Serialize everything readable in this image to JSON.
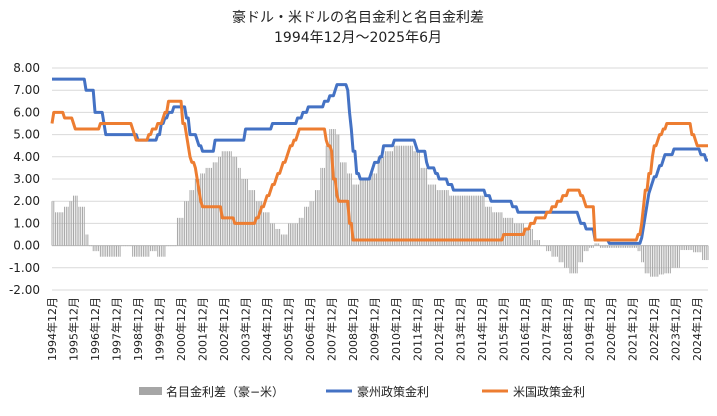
{
  "chart_data": {
    "type": "line",
    "title": "豪ドル・米ドルの名目金利と名目金利差",
    "subtitle": "1994年12月～2025年6月",
    "x_start": "1994-12",
    "x_end": "2025-06",
    "xlabel": "",
    "ylabel": "",
    "ylim": [
      -2.0,
      8.0
    ],
    "yticks": [
      "8.00",
      "7.00",
      "6.00",
      "5.00",
      "4.00",
      "3.00",
      "2.00",
      "1.00",
      "0.00",
      "-1.00",
      "-2.00"
    ],
    "xticks": [
      "1994年12月",
      "1995年12月",
      "1996年12月",
      "1997年12月",
      "1998年12月",
      "1999年12月",
      "2000年12月",
      "2001年12月",
      "2002年12月",
      "2003年12月",
      "2004年12月",
      "2005年12月",
      "2006年12月",
      "2007年12月",
      "2008年12月",
      "2009年12月",
      "2010年12月",
      "2011年12月",
      "2012年12月",
      "2013年12月",
      "2014年12月",
      "2015年12月",
      "2016年12月",
      "2017年12月",
      "2018年12月",
      "2019年12月",
      "2020年12月",
      "2021年12月",
      "2022年12月",
      "2023年12月",
      "2024年12月"
    ],
    "grid": true,
    "legend_position": "bottom",
    "series": [
      {
        "name": "名目金利差（豪−米）",
        "kind": "bar",
        "color": "#a6a6a6",
        "points": [
          [
            "1994-12",
            2.0
          ],
          [
            "1995-02",
            1.5
          ],
          [
            "1995-07",
            1.75
          ],
          [
            "1995-10",
            2.0
          ],
          [
            "1995-12",
            2.25
          ],
          [
            "1996-03",
            1.75
          ],
          [
            "1996-07",
            0.5
          ],
          [
            "1996-09",
            0.0
          ],
          [
            "1996-11",
            -0.25
          ],
          [
            "1997-03",
            -0.5
          ],
          [
            "1998-03",
            0.0
          ],
          [
            "1998-09",
            -0.5
          ],
          [
            "1999-07",
            -0.25
          ],
          [
            "1999-11",
            -0.5
          ],
          [
            "2000-04",
            0.0
          ],
          [
            "2000-10",
            1.25
          ],
          [
            "2001-02",
            2.0
          ],
          [
            "2001-05",
            2.5
          ],
          [
            "2001-08",
            3.0
          ],
          [
            "2001-11",
            3.25
          ],
          [
            "2002-02",
            3.5
          ],
          [
            "2002-06",
            3.75
          ],
          [
            "2002-09",
            4.0
          ],
          [
            "2002-11",
            4.25
          ],
          [
            "2003-05",
            4.0
          ],
          [
            "2003-08",
            3.5
          ],
          [
            "2003-10",
            3.0
          ],
          [
            "2004-02",
            2.5
          ],
          [
            "2004-06",
            2.0
          ],
          [
            "2004-10",
            1.5
          ],
          [
            "2005-02",
            1.0
          ],
          [
            "2005-05",
            0.75
          ],
          [
            "2005-08",
            0.5
          ],
          [
            "2005-12",
            1.0
          ],
          [
            "2006-06",
            1.25
          ],
          [
            "2006-09",
            1.75
          ],
          [
            "2006-12",
            2.0
          ],
          [
            "2007-03",
            2.5
          ],
          [
            "2007-06",
            3.5
          ],
          [
            "2007-09",
            4.5
          ],
          [
            "2007-11",
            5.25
          ],
          [
            "2008-03",
            5.0
          ],
          [
            "2008-05",
            3.75
          ],
          [
            "2008-09",
            3.25
          ],
          [
            "2008-12",
            2.75
          ],
          [
            "2009-04",
            3.0
          ],
          [
            "2009-10",
            3.25
          ],
          [
            "2010-02",
            4.0
          ],
          [
            "2010-06",
            4.25
          ],
          [
            "2010-11",
            4.5
          ],
          [
            "2011-10",
            4.25
          ],
          [
            "2012-02",
            3.5
          ],
          [
            "2012-06",
            2.75
          ],
          [
            "2012-11",
            2.5
          ],
          [
            "2013-06",
            2.25
          ],
          [
            "2014-06",
            2.25
          ],
          [
            "2015-02",
            1.75
          ],
          [
            "2015-06",
            1.5
          ],
          [
            "2015-12",
            1.25
          ],
          [
            "2016-06",
            1.0
          ],
          [
            "2016-12",
            0.75
          ],
          [
            "2017-05",
            0.25
          ],
          [
            "2017-09",
            0.0
          ],
          [
            "2017-12",
            -0.25
          ],
          [
            "2018-03",
            -0.5
          ],
          [
            "2018-07",
            -0.75
          ],
          [
            "2018-10",
            -1.0
          ],
          [
            "2019-01",
            -1.25
          ],
          [
            "2019-06",
            -0.75
          ],
          [
            "2019-09",
            -0.25
          ],
          [
            "2019-12",
            -0.1
          ],
          [
            "2020-03",
            0.1
          ],
          [
            "2020-06",
            -0.1
          ],
          [
            "2021-06",
            -0.1
          ],
          [
            "2022-03",
            -0.25
          ],
          [
            "2022-05",
            -0.75
          ],
          [
            "2022-07",
            -1.25
          ],
          [
            "2022-10",
            -1.4
          ],
          [
            "2023-03",
            -1.3
          ],
          [
            "2023-06",
            -1.25
          ],
          [
            "2023-10",
            -1.0
          ],
          [
            "2024-03",
            -0.2
          ],
          [
            "2024-10",
            -0.3
          ],
          [
            "2025-03",
            -0.65
          ],
          [
            "2025-06",
            -0.65
          ]
        ]
      },
      {
        "name": "豪州政策金利",
        "kind": "line",
        "color": "#4472c4",
        "points": [
          [
            "1994-12",
            7.5
          ],
          [
            "1996-06",
            7.5
          ],
          [
            "1996-07",
            7.0
          ],
          [
            "1996-11",
            7.0
          ],
          [
            "1996-12",
            6.0
          ],
          [
            "1997-04",
            6.0
          ],
          [
            "1997-05",
            5.5
          ],
          [
            "1997-06",
            5.0
          ],
          [
            "1998-11",
            5.0
          ],
          [
            "1998-12",
            4.75
          ],
          [
            "1999-10",
            4.75
          ],
          [
            "1999-11",
            5.0
          ],
          [
            "2000-01",
            5.5
          ],
          [
            "2000-03",
            5.75
          ],
          [
            "2000-05",
            6.0
          ],
          [
            "2000-08",
            6.25
          ],
          [
            "2001-02",
            6.25
          ],
          [
            "2001-03",
            5.75
          ],
          [
            "2001-05",
            5.0
          ],
          [
            "2001-09",
            4.75
          ],
          [
            "2001-10",
            4.5
          ],
          [
            "2001-12",
            4.25
          ],
          [
            "2002-06",
            4.25
          ],
          [
            "2002-07",
            4.75
          ],
          [
            "2003-11",
            4.75
          ],
          [
            "2003-12",
            5.25
          ],
          [
            "2005-02",
            5.25
          ],
          [
            "2005-03",
            5.5
          ],
          [
            "2006-04",
            5.5
          ],
          [
            "2006-05",
            5.75
          ],
          [
            "2006-08",
            6.0
          ],
          [
            "2006-11",
            6.25
          ],
          [
            "2007-07",
            6.25
          ],
          [
            "2007-08",
            6.5
          ],
          [
            "2007-11",
            6.75
          ],
          [
            "2008-02",
            7.0
          ],
          [
            "2008-03",
            7.25
          ],
          [
            "2008-08",
            7.25
          ],
          [
            "2008-09",
            7.0
          ],
          [
            "2008-10",
            6.0
          ],
          [
            "2008-11",
            5.25
          ],
          [
            "2008-12",
            4.25
          ],
          [
            "2009-02",
            3.25
          ],
          [
            "2009-04",
            3.0
          ],
          [
            "2009-09",
            3.0
          ],
          [
            "2009-10",
            3.25
          ],
          [
            "2009-11",
            3.5
          ],
          [
            "2009-12",
            3.75
          ],
          [
            "2010-03",
            4.0
          ],
          [
            "2010-05",
            4.5
          ],
          [
            "2010-11",
            4.75
          ],
          [
            "2011-10",
            4.75
          ],
          [
            "2011-11",
            4.5
          ],
          [
            "2011-12",
            4.25
          ],
          [
            "2012-04",
            4.25
          ],
          [
            "2012-05",
            3.75
          ],
          [
            "2012-06",
            3.5
          ],
          [
            "2012-10",
            3.25
          ],
          [
            "2012-12",
            3.0
          ],
          [
            "2013-04",
            3.0
          ],
          [
            "2013-05",
            2.75
          ],
          [
            "2013-08",
            2.5
          ],
          [
            "2015-01",
            2.5
          ],
          [
            "2015-02",
            2.25
          ],
          [
            "2015-05",
            2.0
          ],
          [
            "2016-04",
            2.0
          ],
          [
            "2016-05",
            1.75
          ],
          [
            "2016-08",
            1.5
          ],
          [
            "2019-05",
            1.5
          ],
          [
            "2019-06",
            1.25
          ],
          [
            "2019-07",
            1.0
          ],
          [
            "2019-10",
            0.75
          ],
          [
            "2020-02",
            0.75
          ],
          [
            "2020-03",
            0.25
          ],
          [
            "2020-10",
            0.25
          ],
          [
            "2020-11",
            0.1
          ],
          [
            "2022-04",
            0.1
          ],
          [
            "2022-05",
            0.35
          ],
          [
            "2022-06",
            0.85
          ],
          [
            "2022-07",
            1.35
          ],
          [
            "2022-08",
            1.85
          ],
          [
            "2022-09",
            2.35
          ],
          [
            "2022-10",
            2.6
          ],
          [
            "2022-11",
            2.85
          ],
          [
            "2022-12",
            3.1
          ],
          [
            "2023-02",
            3.35
          ],
          [
            "2023-03",
            3.6
          ],
          [
            "2023-05",
            3.85
          ],
          [
            "2023-06",
            4.1
          ],
          [
            "2023-11",
            4.35
          ],
          [
            "2025-01",
            4.35
          ],
          [
            "2025-02",
            4.1
          ],
          [
            "2025-05",
            3.85
          ],
          [
            "2025-06",
            3.85
          ]
        ]
      },
      {
        "name": "米国政策金利",
        "kind": "line",
        "color": "#ed7d31",
        "points": [
          [
            "1994-12",
            5.5
          ],
          [
            "1995-01",
            6.0
          ],
          [
            "1995-06",
            6.0
          ],
          [
            "1995-07",
            5.75
          ],
          [
            "1995-11",
            5.75
          ],
          [
            "1995-12",
            5.5
          ],
          [
            "1996-01",
            5.25
          ],
          [
            "1997-02",
            5.25
          ],
          [
            "1997-03",
            5.5
          ],
          [
            "1998-08",
            5.5
          ],
          [
            "1998-09",
            5.25
          ],
          [
            "1998-10",
            5.0
          ],
          [
            "1998-11",
            4.75
          ],
          [
            "1999-05",
            4.75
          ],
          [
            "1999-06",
            5.0
          ],
          [
            "1999-08",
            5.25
          ],
          [
            "1999-11",
            5.5
          ],
          [
            "2000-02",
            5.75
          ],
          [
            "2000-03",
            6.0
          ],
          [
            "2000-05",
            6.5
          ],
          [
            "2000-12",
            6.5
          ],
          [
            "2001-01",
            5.5
          ],
          [
            "2001-03",
            5.0
          ],
          [
            "2001-04",
            4.5
          ],
          [
            "2001-05",
            4.0
          ],
          [
            "2001-06",
            3.75
          ],
          [
            "2001-08",
            3.5
          ],
          [
            "2001-09",
            3.0
          ],
          [
            "2001-10",
            2.5
          ],
          [
            "2001-11",
            2.0
          ],
          [
            "2001-12",
            1.75
          ],
          [
            "2002-10",
            1.75
          ],
          [
            "2002-11",
            1.25
          ],
          [
            "2003-05",
            1.25
          ],
          [
            "2003-06",
            1.0
          ],
          [
            "2004-05",
            1.0
          ],
          [
            "2004-06",
            1.25
          ],
          [
            "2004-08",
            1.5
          ],
          [
            "2004-09",
            1.75
          ],
          [
            "2004-11",
            2.0
          ],
          [
            "2004-12",
            2.25
          ],
          [
            "2005-02",
            2.5
          ],
          [
            "2005-03",
            2.75
          ],
          [
            "2005-05",
            3.0
          ],
          [
            "2005-06",
            3.25
          ],
          [
            "2005-08",
            3.5
          ],
          [
            "2005-09",
            3.75
          ],
          [
            "2005-11",
            4.0
          ],
          [
            "2005-12",
            4.25
          ],
          [
            "2006-01",
            4.5
          ],
          [
            "2006-03",
            4.75
          ],
          [
            "2006-05",
            5.0
          ],
          [
            "2006-06",
            5.25
          ],
          [
            "2007-08",
            5.25
          ],
          [
            "2007-09",
            4.75
          ],
          [
            "2007-10",
            4.5
          ],
          [
            "2007-12",
            4.25
          ],
          [
            "2008-01",
            3.0
          ],
          [
            "2008-03",
            2.25
          ],
          [
            "2008-04",
            2.0
          ],
          [
            "2008-09",
            2.0
          ],
          [
            "2008-10",
            1.0
          ],
          [
            "2008-12",
            0.25
          ],
          [
            "2015-11",
            0.25
          ],
          [
            "2015-12",
            0.5
          ],
          [
            "2016-11",
            0.5
          ],
          [
            "2016-12",
            0.75
          ],
          [
            "2017-03",
            1.0
          ],
          [
            "2017-06",
            1.25
          ],
          [
            "2017-12",
            1.5
          ],
          [
            "2018-03",
            1.75
          ],
          [
            "2018-06",
            2.0
          ],
          [
            "2018-09",
            2.25
          ],
          [
            "2018-12",
            2.5
          ],
          [
            "2019-06",
            2.5
          ],
          [
            "2019-07",
            2.25
          ],
          [
            "2019-09",
            2.0
          ],
          [
            "2019-10",
            1.75
          ],
          [
            "2020-02",
            1.75
          ],
          [
            "2020-03",
            0.25
          ],
          [
            "2022-02",
            0.25
          ],
          [
            "2022-03",
            0.5
          ],
          [
            "2022-05",
            1.0
          ],
          [
            "2022-06",
            1.75
          ],
          [
            "2022-07",
            2.5
          ],
          [
            "2022-09",
            3.25
          ],
          [
            "2022-11",
            4.0
          ],
          [
            "2022-12",
            4.5
          ],
          [
            "2023-02",
            4.75
          ],
          [
            "2023-03",
            5.0
          ],
          [
            "2023-05",
            5.25
          ],
          [
            "2023-07",
            5.5
          ],
          [
            "2024-08",
            5.5
          ],
          [
            "2024-09",
            5.0
          ],
          [
            "2024-11",
            4.75
          ],
          [
            "2024-12",
            4.5
          ],
          [
            "2025-06",
            4.5
          ]
        ]
      }
    ]
  }
}
